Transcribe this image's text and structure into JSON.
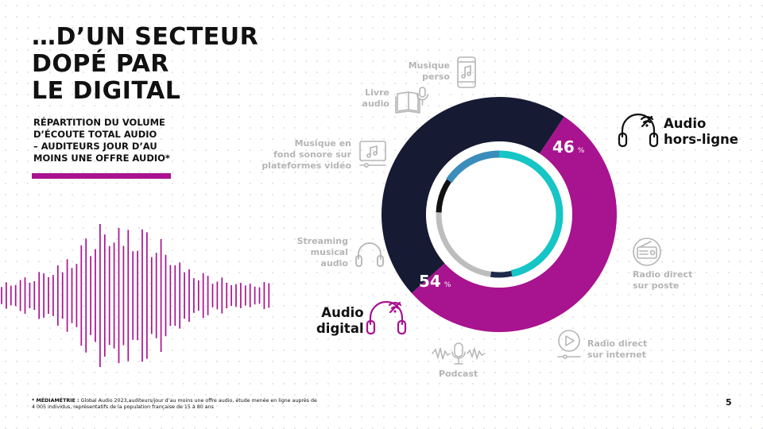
{
  "title": {
    "line1": "…D’UN SECTEUR",
    "line2": "DOPÉ PAR",
    "line3": "LE DIGITAL"
  },
  "subtitle": {
    "line1": "RÉPARTITION DU VOLUME",
    "line2": "D’ÉCOUTE TOTAL AUDIO",
    "line3": "– AUDITEURS JOUR D’AU",
    "line4": "MOINS UNE OFFRE AUDIO*"
  },
  "footnote": {
    "bold": "* MÉDIAMÉTRIE :",
    "text": " Global Audio 2023,auditeurs/jour d’au moins une offre audio, étude menée en ligne auprès de 4 005 individus, représentatifs de la population française de 15 à 80 ans"
  },
  "page_number": "5",
  "colors": {
    "digital": "#a8138f",
    "offline": "#161a33",
    "teal": "#16c5c5",
    "inner_blue": "#3a8dbb",
    "inner_gray": "#bdbdbd",
    "inner_black": "#111111",
    "inner_navy": "#1d2a4a",
    "muted_text": "#b5b5b5"
  },
  "chart_data": {
    "type": "pie",
    "subtype": "donut",
    "outer_ring": [
      {
        "name": "Audio hors-ligne",
        "name_line1": "Audio",
        "name_line2": "hors-ligne",
        "value": 46,
        "unit": "%",
        "color": "#161a33"
      },
      {
        "name": "Audio digital",
        "name_line1": "Audio",
        "name_line2": "digital",
        "value": 54,
        "unit": "%",
        "color": "#a8138f"
      }
    ],
    "inner_ring_colors": [
      "#16c5c5",
      "#1d2a4a",
      "#bdbdbd",
      "#111111",
      "#3a8dbb"
    ],
    "categories": {
      "musique_perso": {
        "line1": "Musique",
        "line2": "perso",
        "icon": "smartphone-music-icon"
      },
      "livre_audio": {
        "line1": "Livre",
        "line2": "audio",
        "icon": "audiobook-icon"
      },
      "fond_sonore": {
        "line1": "Musique en",
        "line2": "fond sonore sur",
        "line3": "plateformes vidéo",
        "icon": "video-music-icon"
      },
      "streaming": {
        "line1": "Streaming",
        "line2": "musical",
        "line3": "audio",
        "icon": "headphones-icon"
      },
      "podcast": {
        "line1": "Podcast",
        "icon": "microphone-icon"
      },
      "radio_internet": {
        "line1": "Radio direct",
        "line2": "sur internet",
        "icon": "play-circle-icon"
      },
      "radio_poste": {
        "line1": "Radio direct",
        "line2": "sur poste",
        "icon": "radio-icon"
      }
    }
  }
}
